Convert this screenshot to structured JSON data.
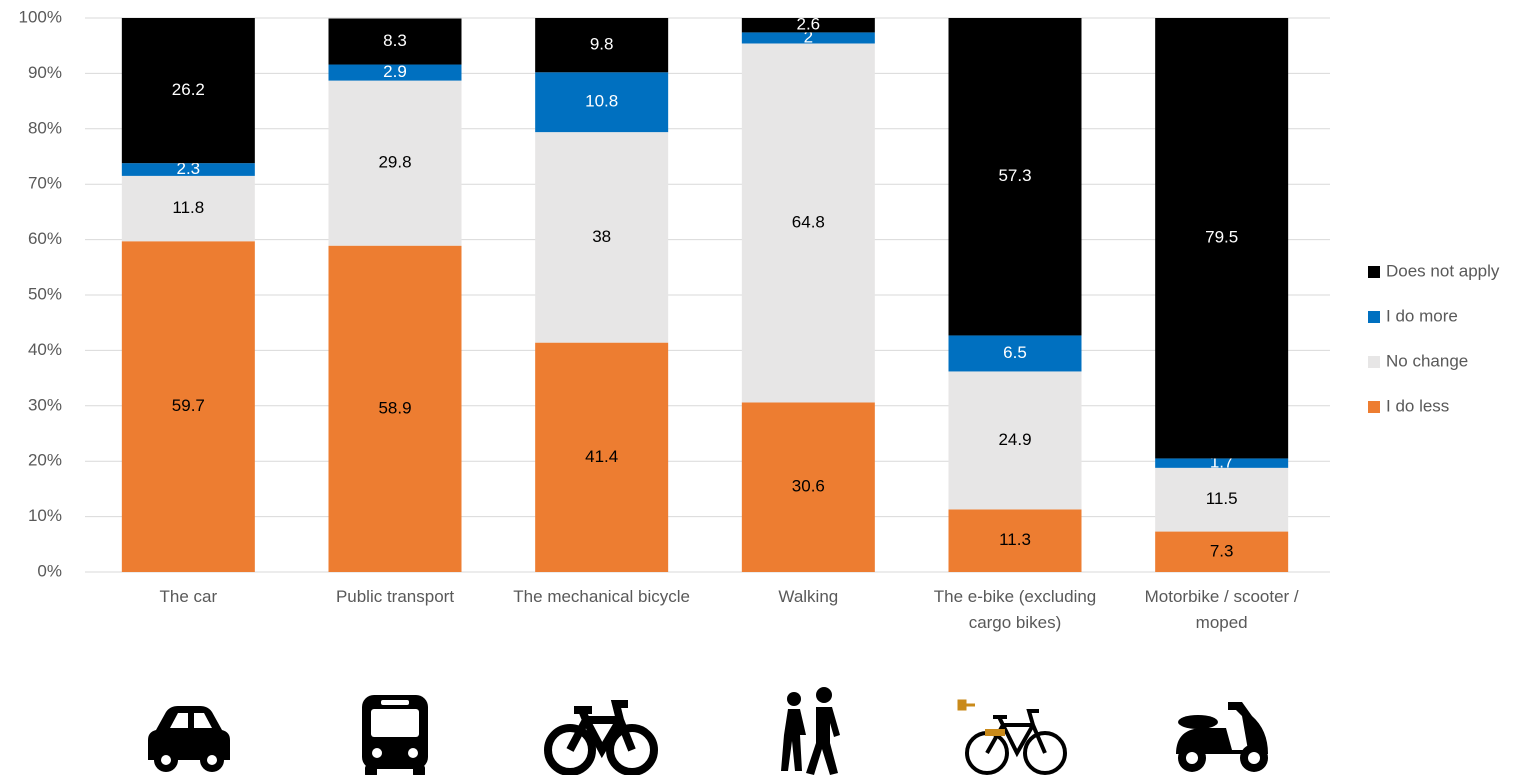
{
  "chart_data": {
    "type": "stacked_bar",
    "categories": [
      "The car",
      "Public transport",
      "The mechanical bicycle",
      "Walking",
      "The e-bike (excluding cargo bikes)",
      "Motorbike / scooter / moped"
    ],
    "series": [
      {
        "name": "I do less",
        "color": "#ed7d31",
        "values": [
          59.7,
          58.9,
          41.4,
          30.6,
          11.3,
          7.3
        ]
      },
      {
        "name": "No change",
        "color": "#e7e6e6",
        "values": [
          11.8,
          29.8,
          38,
          64.8,
          24.9,
          11.5
        ]
      },
      {
        "name": "I do more",
        "color": "#0070c0",
        "values": [
          2.3,
          2.9,
          10.8,
          2,
          6.5,
          1.7
        ]
      },
      {
        "name": "Does not apply",
        "color": "#000000",
        "values": [
          26.2,
          8.3,
          9.8,
          2.6,
          57.3,
          79.5
        ]
      }
    ],
    "ylim": [
      0,
      100
    ],
    "yticks": [
      {
        "value": 0,
        "label": "0%"
      },
      {
        "value": 10,
        "label": "10%"
      },
      {
        "value": 20,
        "label": "20%"
      },
      {
        "value": 30,
        "label": "30%"
      },
      {
        "value": 40,
        "label": "40%"
      },
      {
        "value": 50,
        "label": "50%"
      },
      {
        "value": 60,
        "label": "60%"
      },
      {
        "value": 70,
        "label": "70%"
      },
      {
        "value": 80,
        "label": "80%"
      },
      {
        "value": 90,
        "label": "90%"
      },
      {
        "value": 100,
        "label": "100%"
      }
    ],
    "grid": true,
    "legend": "right"
  }
}
